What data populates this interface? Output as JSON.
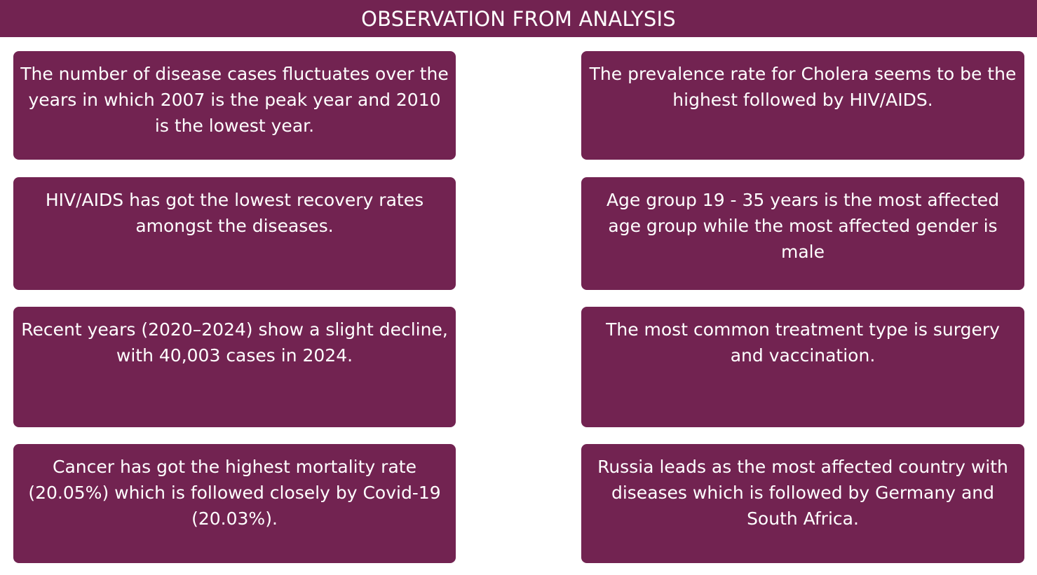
{
  "header": {
    "title": "OBSERVATION FROM ANALYSIS"
  },
  "observations": [
    {
      "text": "The number of disease cases fluctuates over the years in which 2007 is the peak year and 2010 is the lowest year."
    },
    {
      "text": "The prevalence rate for Cholera seems to be the highest followed by HIV/AIDS."
    },
    {
      "text": "HIV/AIDS has got the lowest recovery rates amongst the diseases."
    },
    {
      "text": "Age group 19 - 35 years is the most affected age group while the most affected gender is male"
    },
    {
      "text": "Recent years (2020–2024) show a slight decline, with 40,003 cases in 2024."
    },
    {
      "text": "The most common treatment type is surgery and vaccination."
    },
    {
      "text": "Cancer has got the highest mortality rate (20.05%) which is followed closely by Covid-19 (20.03%)."
    },
    {
      "text": "Russia leads as the most affected country with diseases which is followed by Germany and South Africa."
    }
  ],
  "colors": {
    "accent": "#722351",
    "text": "#ffffff",
    "background": "#ffffff"
  }
}
